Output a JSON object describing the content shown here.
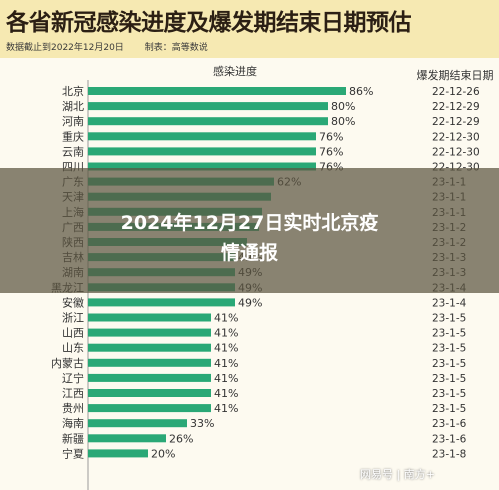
{
  "title": "各省新冠感染进度及爆发期结束日期预估",
  "subtitle": {
    "date": "数据截止到2022年12月20日",
    "source": "制表：高等数说"
  },
  "banner": {
    "line1": "2024年12月27日实时北京疫",
    "line2": "情通报"
  },
  "watermark": "网易号 | 南方+",
  "colors": {
    "bar": "#2aa876",
    "header_bg": "#f6e9b2",
    "panel_bg": "#fdfaf0"
  },
  "chart_data": {
    "type": "bar",
    "orientation": "horizontal",
    "column_headers": {
      "progress": "感染进度",
      "end_date": "爆发期结束日期"
    },
    "categories": [
      "北京",
      "湖北",
      "河南",
      "重庆",
      "云南",
      "四川",
      "广东",
      "天津",
      "上海",
      "广西",
      "陕西",
      "吉林",
      "湖南",
      "黑龙江",
      "安徽",
      "浙江",
      "山西",
      "山东",
      "内蒙古",
      "辽宁",
      "江西",
      "贵州",
      "海南",
      "新疆",
      "宁夏"
    ],
    "values": [
      86,
      80,
      80,
      76,
      76,
      76,
      62,
      61,
      58,
      57,
      53,
      49,
      49,
      49,
      49,
      41,
      41,
      41,
      41,
      41,
      41,
      41,
      33,
      26,
      20
    ],
    "value_labels": [
      "86%",
      "80%",
      "80%",
      "76%",
      "76%",
      "76%",
      "62%",
      "",
      "",
      "",
      "",
      "49%",
      "49%",
      "49%",
      "49%",
      "41%",
      "41%",
      "41%",
      "41%",
      "41%",
      "41%",
      "41%",
      "33%",
      "26%",
      "20%"
    ],
    "end_dates": [
      "22-12-26",
      "22-12-29",
      "22-12-29",
      "22-12-30",
      "22-12-30",
      "22-12-30",
      "23-1-1",
      "23-1-1",
      "23-1-1",
      "23-1-2",
      "23-1-2",
      "23-1-3",
      "23-1-3",
      "23-1-4",
      "23-1-4",
      "23-1-5",
      "23-1-5",
      "23-1-5",
      "23-1-5",
      "23-1-5",
      "23-1-5",
      "23-1-5",
      "23-1-6",
      "23-1-6",
      "23-1-8"
    ],
    "unit": "%",
    "xlim": [
      0,
      100
    ]
  }
}
